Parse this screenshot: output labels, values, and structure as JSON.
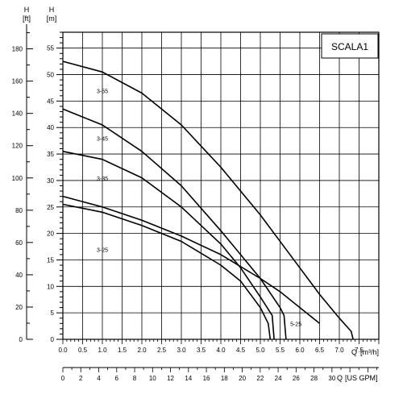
{
  "chart_data": {
    "type": "line",
    "title": "SCALA1",
    "left_axis": {
      "symbol": "H",
      "unit": "[ft]",
      "range": [
        0,
        190
      ],
      "ticks": [
        0,
        20,
        40,
        60,
        80,
        100,
        120,
        140,
        160,
        180
      ],
      "tick_labels": [
        "0",
        "20",
        "40",
        "60",
        "80",
        "100",
        "120",
        "140",
        "160",
        "180"
      ]
    },
    "right_axis": {
      "symbol": "H",
      "unit": "[m]",
      "range": [
        0,
        58
      ],
      "ticks": [
        0,
        5,
        10,
        15,
        20,
        25,
        30,
        35,
        40,
        45,
        50,
        55
      ],
      "tick_labels": [
        "0",
        "5",
        "10",
        "15",
        "20",
        "25",
        "30",
        "35",
        "40",
        "45",
        "50",
        "55"
      ]
    },
    "x_axis": {
      "symbol": "Q",
      "unit": "[m³/h]",
      "range": [
        0,
        8.0
      ],
      "ticks": [
        0,
        0.5,
        1.0,
        1.5,
        2.0,
        2.5,
        3.0,
        3.5,
        4.0,
        4.5,
        5.0,
        5.5,
        6.0,
        6.5,
        7.0,
        7.5
      ],
      "tick_labels": [
        "0.0",
        "0.5",
        "1.0",
        "1.5",
        "2.0",
        "2.5",
        "3.0",
        "3.5",
        "4.0",
        "4.5",
        "5.0",
        "5.5",
        "6.0",
        "6.5",
        "7.0",
        "7.5"
      ]
    },
    "x2_axis": {
      "symbol": "Q",
      "unit": "[US GPM]",
      "range": [
        0,
        35.2
      ],
      "ticks": [
        0,
        2,
        4,
        6,
        8,
        10,
        12,
        14,
        16,
        18,
        20,
        22,
        24,
        26,
        28,
        30,
        32
      ],
      "tick_labels": [
        "0",
        "2",
        "4",
        "6",
        "8",
        "10",
        "12",
        "14",
        "16",
        "18",
        "20",
        "22",
        "24",
        "26",
        "28",
        "30",
        ""
      ]
    },
    "grid": true,
    "series": [
      {
        "name": "3-55",
        "x": [
          0.0,
          1.0,
          2.0,
          3.0,
          4.0,
          5.0,
          6.0,
          6.5,
          7.0,
          7.3,
          7.35
        ],
        "y": [
          52.5,
          50.5,
          46.5,
          40.5,
          32.5,
          23.5,
          13.5,
          8.5,
          4.0,
          1.5,
          0
        ]
      },
      {
        "name": "3-45",
        "x": [
          0.0,
          1.0,
          2.0,
          3.0,
          4.0,
          5.0,
          5.5,
          5.6,
          5.65
        ],
        "y": [
          43.5,
          40.5,
          35.5,
          29.0,
          20.5,
          11.5,
          6.0,
          4.5,
          0
        ]
      },
      {
        "name": "3-35",
        "x": [
          0.0,
          1.0,
          2.0,
          3.0,
          4.0,
          4.5,
          5.0,
          5.3,
          5.35
        ],
        "y": [
          35.5,
          34.0,
          30.5,
          25.0,
          18.0,
          13.5,
          8.0,
          4.5,
          0
        ]
      },
      {
        "name": "3-25",
        "x": [
          0.0,
          1.0,
          2.0,
          3.0,
          4.0,
          4.5,
          5.0,
          5.2,
          5.25
        ],
        "y": [
          25.5,
          24.0,
          21.5,
          18.5,
          14.0,
          11.0,
          6.0,
          3.0,
          0
        ]
      },
      {
        "name": "5-25",
        "x": [
          0.0,
          1.0,
          2.0,
          3.0,
          4.0,
          5.0,
          5.5,
          6.0,
          6.5
        ],
        "y": [
          27.0,
          25.0,
          22.5,
          19.5,
          16.0,
          11.5,
          9.0,
          6.0,
          3.0
        ]
      }
    ],
    "curve_labels": [
      {
        "text": "3-55",
        "x": 1.0,
        "y": 46.5
      },
      {
        "text": "3-45",
        "x": 1.0,
        "y": 37.5
      },
      {
        "text": "3-35",
        "x": 1.0,
        "y": 30.0
      },
      {
        "text": "3-25",
        "x": 1.0,
        "y": 16.5
      },
      {
        "text": "5-25",
        "x": 5.9,
        "y": 2.5
      }
    ]
  }
}
